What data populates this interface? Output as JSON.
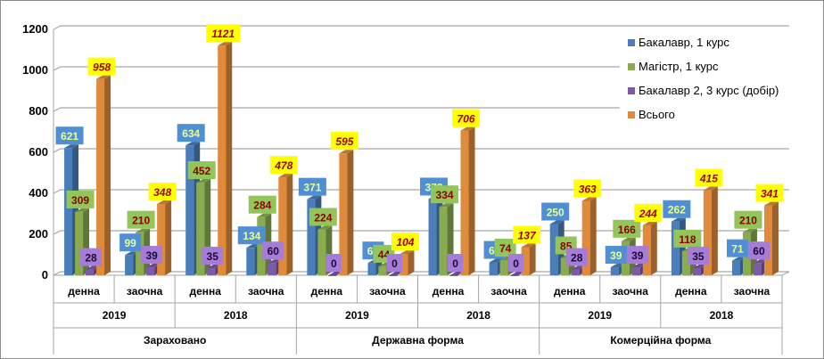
{
  "chart_data": {
    "type": "bar",
    "style": "3d-clustered-column",
    "ylim": [
      0,
      1200
    ],
    "yticks": [
      0,
      200,
      400,
      600,
      800,
      1000,
      1200
    ],
    "grid": true,
    "legend_position": "right",
    "categories": [
      "денна",
      "заочна",
      "денна",
      "заочна",
      "денна",
      "заочна",
      "денна",
      "заочна",
      "денна",
      "заочна",
      "денна",
      "заочна"
    ],
    "years": [
      "2019",
      "2018",
      "2019",
      "2018",
      "2019",
      "2018"
    ],
    "groups": [
      "Зараховано",
      "Державна форма",
      "Комерційна форма"
    ],
    "series": [
      {
        "name": "Бакалавр, 1 курс",
        "color": "#4a7ebb",
        "label_bg": "#4f8fd6",
        "label_color": "#eaff8a",
        "values": [
          621,
          99,
          634,
          134,
          371,
          60,
          372,
          63,
          250,
          39,
          262,
          71
        ]
      },
      {
        "name": "Магістр, 1 курс",
        "color": "#8aac4f",
        "label_bg": "#92c65a",
        "label_color": "#8b0000",
        "values": [
          309,
          210,
          452,
          284,
          224,
          44,
          334,
          74,
          85,
          166,
          118,
          210
        ]
      },
      {
        "name": "Бакалавр 2, 3  курс (добір)",
        "color": "#7c5aa6",
        "label_bg": "#a77bd8",
        "label_color": "#1a0a33",
        "values": [
          28,
          39,
          35,
          60,
          0,
          0,
          0,
          0,
          28,
          39,
          35,
          60
        ]
      },
      {
        "name": "Всього",
        "color": "#e08a3c",
        "label_bg": "#ffff00",
        "label_color": "#a00000",
        "values": [
          958,
          348,
          1121,
          478,
          595,
          104,
          706,
          137,
          363,
          244,
          415,
          341
        ]
      }
    ]
  }
}
